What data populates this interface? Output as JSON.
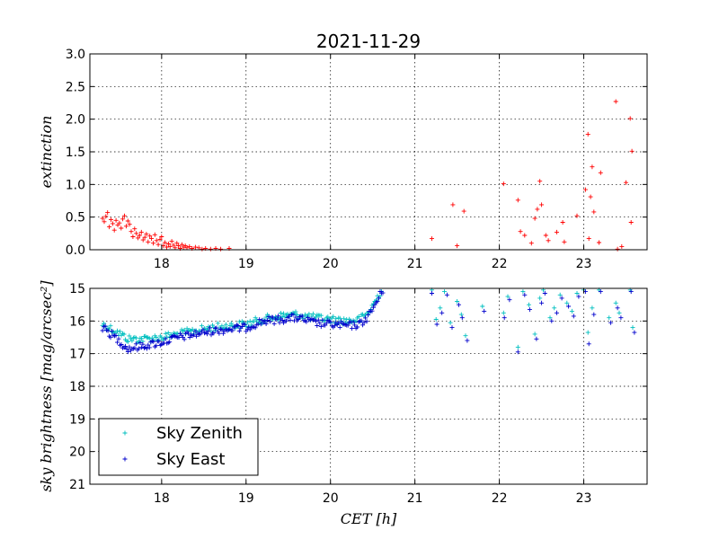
{
  "chart_data": [
    {
      "type": "scatter",
      "title": "2021-11-29",
      "ylabel": "extinction",
      "xlabel": "",
      "xlim": [
        17.15,
        23.75
      ],
      "ylim": [
        0,
        3.0
      ],
      "x_ticks": [
        18,
        19,
        20,
        21,
        22,
        23
      ],
      "x_tick_labels": [
        "18",
        "19",
        "20",
        "21",
        "22",
        "23"
      ],
      "y_ticks": [
        0,
        0.5,
        1.0,
        1.5,
        2.0,
        2.5,
        3.0
      ],
      "y_tick_labels": [
        "0.0",
        "0.5",
        "1.0",
        "1.5",
        "2.0",
        "2.5",
        "3.0"
      ],
      "grid": true,
      "series": [
        {
          "name": "",
          "color": "#ff0000",
          "marker": "+",
          "points": [
            [
              17.3,
              0.48
            ],
            [
              17.32,
              0.43
            ],
            [
              17.34,
              0.51
            ],
            [
              17.36,
              0.57
            ],
            [
              17.38,
              0.35
            ],
            [
              17.4,
              0.46
            ],
            [
              17.42,
              0.4
            ],
            [
              17.44,
              0.3
            ],
            [
              17.46,
              0.45
            ],
            [
              17.48,
              0.38
            ],
            [
              17.5,
              0.41
            ],
            [
              17.52,
              0.33
            ],
            [
              17.54,
              0.47
            ],
            [
              17.56,
              0.52
            ],
            [
              17.58,
              0.36
            ],
            [
              17.6,
              0.44
            ],
            [
              17.62,
              0.39
            ],
            [
              17.64,
              0.28
            ],
            [
              17.66,
              0.2
            ],
            [
              17.68,
              0.32
            ],
            [
              17.7,
              0.25
            ],
            [
              17.72,
              0.18
            ],
            [
              17.74,
              0.22
            ],
            [
              17.76,
              0.27
            ],
            [
              17.78,
              0.15
            ],
            [
              17.8,
              0.19
            ],
            [
              17.82,
              0.24
            ],
            [
              17.84,
              0.12
            ],
            [
              17.86,
              0.21
            ],
            [
              17.88,
              0.17
            ],
            [
              17.9,
              0.1
            ],
            [
              17.92,
              0.23
            ],
            [
              17.94,
              0.14
            ],
            [
              17.96,
              0.08
            ],
            [
              17.98,
              0.16
            ],
            [
              18.0,
              0.2
            ],
            [
              18.02,
              0.06
            ],
            [
              18.04,
              0.11
            ],
            [
              18.06,
              0.04
            ],
            [
              18.08,
              0.09
            ],
            [
              18.1,
              0.05
            ],
            [
              18.12,
              0.13
            ],
            [
              18.14,
              0.07
            ],
            [
              18.16,
              0.03
            ],
            [
              18.18,
              0.1
            ],
            [
              18.2,
              0.06
            ],
            [
              18.22,
              0.02
            ],
            [
              18.24,
              0.08
            ],
            [
              18.26,
              0.04
            ],
            [
              18.28,
              0.06
            ],
            [
              18.3,
              0.03
            ],
            [
              18.33,
              0.05
            ],
            [
              18.36,
              0.02
            ],
            [
              18.4,
              0.04
            ],
            [
              18.44,
              0.03
            ],
            [
              18.48,
              0.01
            ],
            [
              18.52,
              0.02
            ],
            [
              18.58,
              0.01
            ],
            [
              18.64,
              0.02
            ],
            [
              18.7,
              0.01
            ],
            [
              18.8,
              0.02
            ],
            [
              21.2,
              0.17
            ],
            [
              21.45,
              0.69
            ],
            [
              21.5,
              0.06
            ],
            [
              21.58,
              0.59
            ],
            [
              22.05,
              1.01
            ],
            [
              22.22,
              0.76
            ],
            [
              22.25,
              0.28
            ],
            [
              22.3,
              0.22
            ],
            [
              22.38,
              0.1
            ],
            [
              22.42,
              0.48
            ],
            [
              22.45,
              0.62
            ],
            [
              22.5,
              0.69
            ],
            [
              22.48,
              1.05
            ],
            [
              22.55,
              0.22
            ],
            [
              22.58,
              0.14
            ],
            [
              22.68,
              0.27
            ],
            [
              22.75,
              0.42
            ],
            [
              22.77,
              0.12
            ],
            [
              22.92,
              0.52
            ],
            [
              23.02,
              0.92
            ],
            [
              23.05,
              1.77
            ],
            [
              23.06,
              0.17
            ],
            [
              23.08,
              0.81
            ],
            [
              23.1,
              1.27
            ],
            [
              23.12,
              0.58
            ],
            [
              23.2,
              1.18
            ],
            [
              23.18,
              0.11
            ],
            [
              23.38,
              2.27
            ],
            [
              23.4,
              0.01
            ],
            [
              23.5,
              1.03
            ],
            [
              23.55,
              2.01
            ],
            [
              23.57,
              1.51
            ],
            [
              23.56,
              0.42
            ],
            [
              23.45,
              0.05
            ]
          ]
        }
      ]
    },
    {
      "type": "scatter",
      "title": "",
      "ylabel": "sky brightness [mag/arcsec²]",
      "xlabel": "CET [h]",
      "xlim": [
        17.15,
        23.75
      ],
      "ylim": [
        21,
        15
      ],
      "inverted_y": true,
      "x_ticks": [
        18,
        19,
        20,
        21,
        22,
        23
      ],
      "x_tick_labels": [
        "18",
        "19",
        "20",
        "21",
        "22",
        "23"
      ],
      "y_ticks": [
        15,
        16,
        17,
        18,
        19,
        20,
        21
      ],
      "y_tick_labels": [
        "15",
        "16",
        "17",
        "18",
        "19",
        "20",
        "21"
      ],
      "grid": true,
      "legend": "lower-left",
      "series": [
        {
          "name": "Sky Zenith",
          "color": "#00bfbf",
          "marker": "+",
          "x_start": 17.3,
          "x_end": 20.62,
          "count": 210,
          "anchors": [
            [
              17.3,
              16.1
            ],
            [
              17.45,
              16.3
            ],
            [
              17.6,
              16.55
            ],
            [
              17.8,
              16.55
            ],
            [
              18.0,
              16.5
            ],
            [
              18.2,
              16.4
            ],
            [
              18.4,
              16.3
            ],
            [
              18.6,
              16.2
            ],
            [
              18.8,
              16.15
            ],
            [
              19.0,
              16.1
            ],
            [
              19.2,
              15.95
            ],
            [
              19.4,
              15.85
            ],
            [
              19.6,
              15.8
            ],
            [
              19.8,
              15.9
            ],
            [
              20.0,
              15.95
            ],
            [
              20.2,
              16.0
            ],
            [
              20.35,
              15.95
            ],
            [
              20.45,
              15.75
            ],
            [
              20.55,
              15.3
            ],
            [
              20.62,
              15.0
            ]
          ],
          "jitter": 0.12,
          "scattered": [
            [
              21.2,
              15.05
            ],
            [
              21.25,
              15.95
            ],
            [
              21.3,
              15.6
            ],
            [
              21.35,
              15.1
            ],
            [
              21.42,
              16.05
            ],
            [
              21.5,
              15.4
            ],
            [
              21.55,
              15.8
            ],
            [
              21.6,
              16.45
            ],
            [
              21.8,
              15.55
            ],
            [
              22.05,
              15.75
            ],
            [
              22.1,
              15.25
            ],
            [
              22.22,
              16.8
            ],
            [
              22.28,
              15.1
            ],
            [
              22.35,
              15.5
            ],
            [
              22.42,
              16.4
            ],
            [
              22.48,
              15.3
            ],
            [
              22.52,
              15.05
            ],
            [
              22.6,
              15.9
            ],
            [
              22.65,
              15.6
            ],
            [
              22.72,
              15.2
            ],
            [
              22.8,
              15.45
            ],
            [
              22.86,
              15.7
            ],
            [
              22.92,
              15.15
            ],
            [
              23.0,
              15.05
            ],
            [
              23.05,
              16.35
            ],
            [
              23.1,
              15.6
            ],
            [
              23.18,
              15.05
            ],
            [
              23.3,
              15.9
            ],
            [
              23.38,
              15.45
            ],
            [
              23.42,
              15.75
            ],
            [
              23.55,
              15.05
            ],
            [
              23.58,
              16.2
            ]
          ]
        },
        {
          "name": "Sky East",
          "color": "#0000cc",
          "marker": "+",
          "x_start": 17.3,
          "x_end": 20.62,
          "count": 210,
          "anchors": [
            [
              17.3,
              16.2
            ],
            [
              17.45,
              16.5
            ],
            [
              17.6,
              16.85
            ],
            [
              17.8,
              16.75
            ],
            [
              18.0,
              16.65
            ],
            [
              18.2,
              16.5
            ],
            [
              18.4,
              16.4
            ],
            [
              18.6,
              16.3
            ],
            [
              18.8,
              16.25
            ],
            [
              19.0,
              16.2
            ],
            [
              19.2,
              16.0
            ],
            [
              19.4,
              15.95
            ],
            [
              19.6,
              15.9
            ],
            [
              19.8,
              16.05
            ],
            [
              20.0,
              16.1
            ],
            [
              20.2,
              16.15
            ],
            [
              20.35,
              16.1
            ],
            [
              20.45,
              15.85
            ],
            [
              20.55,
              15.4
            ],
            [
              20.62,
              15.05
            ]
          ],
          "jitter": 0.12,
          "scattered": [
            [
              21.2,
              15.15
            ],
            [
              21.26,
              16.1
            ],
            [
              21.32,
              15.75
            ],
            [
              21.38,
              15.2
            ],
            [
              21.44,
              16.2
            ],
            [
              21.52,
              15.5
            ],
            [
              21.56,
              15.9
            ],
            [
              21.62,
              16.6
            ],
            [
              21.82,
              15.7
            ],
            [
              22.06,
              15.9
            ],
            [
              22.12,
              15.35
            ],
            [
              22.22,
              16.95
            ],
            [
              22.3,
              15.2
            ],
            [
              22.36,
              15.65
            ],
            [
              22.44,
              16.55
            ],
            [
              22.5,
              15.45
            ],
            [
              22.54,
              15.15
            ],
            [
              22.62,
              16.0
            ],
            [
              22.68,
              15.75
            ],
            [
              22.74,
              15.3
            ],
            [
              22.82,
              15.55
            ],
            [
              22.88,
              15.85
            ],
            [
              22.94,
              15.25
            ],
            [
              23.02,
              15.1
            ],
            [
              23.06,
              16.7
            ],
            [
              23.12,
              15.8
            ],
            [
              23.2,
              15.1
            ],
            [
              23.32,
              16.05
            ],
            [
              23.4,
              15.6
            ],
            [
              23.44,
              15.9
            ],
            [
              23.56,
              15.1
            ],
            [
              23.6,
              16.35
            ]
          ]
        }
      ]
    }
  ]
}
